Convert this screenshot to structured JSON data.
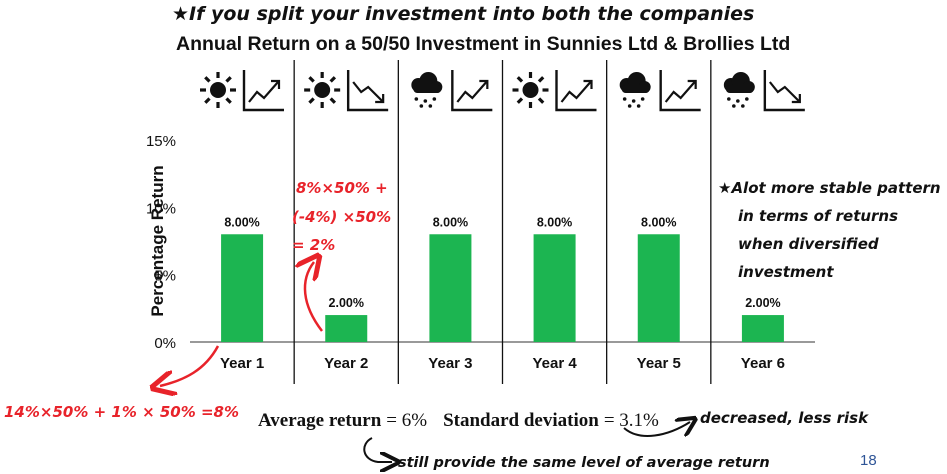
{
  "annotations": {
    "top_note": "★If you split your investment into both the companies",
    "calc_year2": [
      "8%×50% +",
      "(-4%) ×50%",
      "= 2%"
    ],
    "calc_year1": "14%×50% + 1% × 50% =8%",
    "stable_note": [
      "★Alot more stable pattern",
      "in terms of returns",
      "when diversified",
      "investment"
    ],
    "decreased_note": "decreased, less risk",
    "same_avg_note": "still provide the same level of average return"
  },
  "stats": {
    "avg_label": "Average return",
    "avg_value": "= 6%",
    "sd_label": "Standard deviation",
    "sd_value": "= 3.1%"
  },
  "slide_number": "18",
  "icons": [
    [
      "sun-icon",
      "trend-up-icon"
    ],
    [
      "sun-icon",
      "trend-down-icon"
    ],
    [
      "rain-cloud-icon",
      "trend-up-icon"
    ],
    [
      "sun-icon",
      "trend-up-icon"
    ],
    [
      "rain-cloud-icon",
      "trend-up-icon"
    ],
    [
      "rain-cloud-icon",
      "trend-down-icon"
    ]
  ],
  "colors": {
    "bar": "#1cb551",
    "annotation": "#e8232a",
    "ink": "#111111"
  },
  "chart_data": {
    "type": "bar",
    "title": "Annual Return on a 50/50 Investment in Sunnies Ltd & Brollies Ltd",
    "categories": [
      "Year 1",
      "Year 2",
      "Year 3",
      "Year 4",
      "Year 5",
      "Year 6"
    ],
    "values": [
      8,
      2,
      8,
      8,
      8,
      2
    ],
    "data_labels": [
      "8.00%",
      "2.00%",
      "8.00%",
      "8.00%",
      "8.00%",
      "2.00%"
    ],
    "ylabel": "Percentage Return",
    "xlabel": "",
    "ylim": [
      0,
      15
    ],
    "yticks": [
      0,
      5,
      10,
      15
    ],
    "ytick_labels": [
      "0%",
      "5%",
      "10%",
      "15%"
    ],
    "grid": false
  }
}
